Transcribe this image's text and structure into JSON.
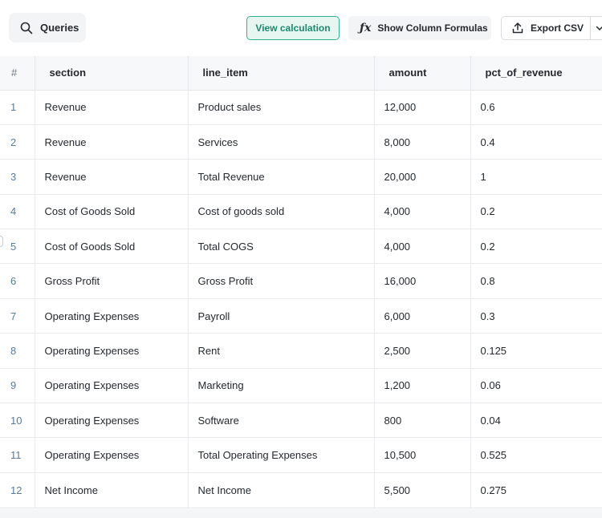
{
  "toolbar": {
    "queries_label": "Queries",
    "view_calculation_label": "View calculation",
    "show_formulas_label": "Show Column Formulas",
    "formula_glyph": "ƒx",
    "export_label": "Export CSV",
    "accent_color": "#33b08d"
  },
  "table": {
    "columns": [
      "#",
      "section",
      "line_item",
      "amount",
      "pct_of_revenue"
    ],
    "rows": [
      [
        "1",
        "Revenue",
        "Product sales",
        "12,000",
        "0.6"
      ],
      [
        "2",
        "Revenue",
        "Services",
        "8,000",
        "0.4"
      ],
      [
        "3",
        "Revenue",
        "Total Revenue",
        "20,000",
        "1"
      ],
      [
        "4",
        "Cost of Goods Sold",
        "Cost of goods sold",
        "4,000",
        "0.2"
      ],
      [
        "5",
        "Cost of Goods Sold",
        "Total COGS",
        "4,000",
        "0.2"
      ],
      [
        "6",
        "Gross Profit",
        "Gross Profit",
        "16,000",
        "0.8"
      ],
      [
        "7",
        "Operating Expenses",
        "Payroll",
        "6,000",
        "0.3"
      ],
      [
        "8",
        "Operating Expenses",
        "Rent",
        "2,500",
        "0.125"
      ],
      [
        "9",
        "Operating Expenses",
        "Marketing",
        "1,200",
        "0.06"
      ],
      [
        "10",
        "Operating Expenses",
        "Software",
        "800",
        "0.04"
      ],
      [
        "11",
        "Operating Expenses",
        "Total Operating Expenses",
        "10,500",
        "0.525"
      ],
      [
        "12",
        "Net Income",
        "Net Income",
        "5,500",
        "0.275"
      ]
    ]
  }
}
